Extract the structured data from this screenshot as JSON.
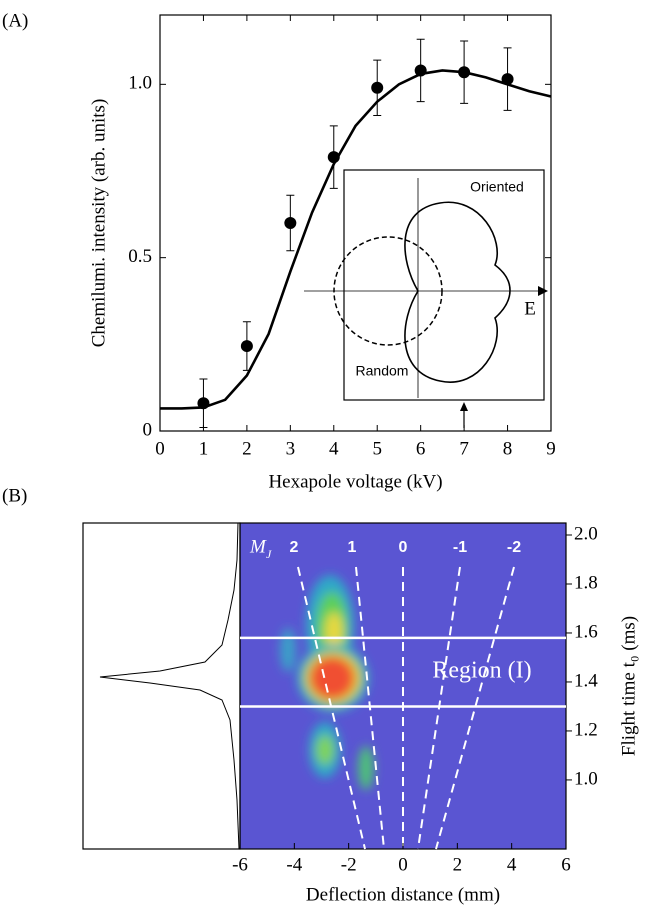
{
  "chart_data": [
    {
      "type": "scatter",
      "panel_label": "(A)",
      "xlabel": "Hexapole voltage (kV)",
      "ylabel": "Chemilumi. intensity (arb. units)",
      "xlim": [
        0,
        9
      ],
      "xticks": [
        0,
        1,
        2,
        3,
        4,
        5,
        6,
        7,
        8,
        9
      ],
      "ylim": [
        0,
        1.2
      ],
      "yticks": [
        0,
        0.5,
        {
          "value": 1,
          "label": "1.0"
        }
      ],
      "series": [
        {
          "color": "#000000",
          "x": [
            1,
            2,
            3,
            4,
            5,
            6,
            7,
            8
          ],
          "values": [
            0.08,
            0.245,
            0.6,
            0.79,
            0.99,
            1.04,
            1.035,
            1.015
          ],
          "errors": [
            0.07,
            0.07,
            0.08,
            0.09,
            0.08,
            0.09,
            0.09,
            0.09
          ]
        }
      ],
      "fit": {
        "color": "#000000",
        "x": [
          0,
          0.5,
          1,
          1.5,
          2,
          2.5,
          3,
          3.5,
          4,
          4.5,
          5,
          5.5,
          6,
          6.5,
          7,
          7.5,
          8,
          8.5,
          9
        ],
        "values": [
          0.065,
          0.065,
          0.068,
          0.09,
          0.16,
          0.28,
          0.46,
          0.63,
          0.77,
          0.88,
          0.95,
          1.0,
          1.03,
          1.04,
          1.035,
          1.02,
          1.0,
          0.98,
          0.965
        ]
      },
      "inset_labels": [
        "Oriented",
        "Random",
        "E"
      ]
    },
    {
      "type": "image",
      "panel_label": "(B)",
      "xlabel": "Deflection distance (mm)",
      "ylabel": "Flight time t₀ (ms)",
      "xlim": [
        -6,
        6
      ],
      "xticks": [
        -6,
        -4,
        -2,
        0,
        2,
        4,
        6
      ],
      "ylim": [
        0.718,
        2.049
      ],
      "yticks": [
        {
          "value": 1,
          "label": "1.0"
        },
        1.2,
        1.4,
        1.6,
        1.8,
        {
          "value": 2,
          "label": "2.0"
        }
      ],
      "mj_symbol": "M",
      "mj_subscript": "J",
      "mj_labels": [
        "2",
        "1",
        "0",
        "-1",
        "-2"
      ],
      "region_label": "Region (I)",
      "region_bounds": [
        1.58,
        1.3
      ]
    }
  ]
}
